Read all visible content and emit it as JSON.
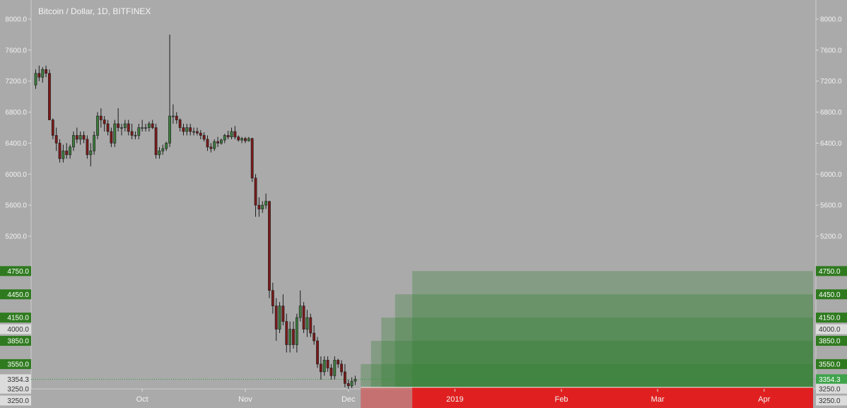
{
  "title": "Bitcoin / Dollar, 1D, BITFINEX",
  "chart_data": {
    "type": "candlestick",
    "title": "Bitcoin / Dollar, 1D, BITFINEX",
    "y_axis_ticks": [
      "8000.0",
      "7600.0",
      "7200.0",
      "6800.0",
      "6400.0",
      "6000.0",
      "5600.0",
      "5200.0"
    ],
    "ylim": [
      3150,
      8150
    ],
    "x_axis_ticks": [
      {
        "label": "Oct",
        "index": 31
      },
      {
        "label": "Nov",
        "index": 61
      },
      {
        "label": "Dec",
        "index": 91
      },
      {
        "label": "2019",
        "index": 122
      },
      {
        "label": "Feb",
        "index": 153
      },
      {
        "label": "Mar",
        "index": 181
      },
      {
        "label": "Apr",
        "index": 212
      }
    ],
    "x_range": [
      -1,
      229
    ],
    "candles_ohlc": [
      [
        7150,
        7350,
        7100,
        7300
      ],
      [
        7300,
        7400,
        7200,
        7250
      ],
      [
        7250,
        7380,
        7180,
        7350
      ],
      [
        7350,
        7400,
        7250,
        7300
      ],
      [
        7300,
        7350,
        6700,
        6700
      ],
      [
        6700,
        6720,
        6450,
        6500
      ],
      [
        6500,
        6600,
        6300,
        6400
      ],
      [
        6400,
        6450,
        6150,
        6200
      ],
      [
        6200,
        6380,
        6150,
        6300
      ],
      [
        6300,
        6400,
        6200,
        6250
      ],
      [
        6250,
        6380,
        6200,
        6350
      ],
      [
        6350,
        6550,
        6300,
        6500
      ],
      [
        6500,
        6600,
        6400,
        6450
      ],
      [
        6450,
        6550,
        6380,
        6500
      ],
      [
        6500,
        6550,
        6400,
        6450
      ],
      [
        6450,
        6500,
        6200,
        6250
      ],
      [
        6250,
        6400,
        6100,
        6300
      ],
      [
        6300,
        6550,
        6250,
        6500
      ],
      [
        6500,
        6800,
        6450,
        6750
      ],
      [
        6750,
        6850,
        6600,
        6700
      ],
      [
        6700,
        6750,
        6550,
        6650
      ],
      [
        6650,
        6700,
        6500,
        6550
      ],
      [
        6550,
        6600,
        6350,
        6400
      ],
      [
        6400,
        6700,
        6350,
        6650
      ],
      [
        6650,
        6850,
        6550,
        6600
      ],
      [
        6600,
        6650,
        6500,
        6600
      ],
      [
        6600,
        6700,
        6550,
        6650
      ],
      [
        6650,
        6700,
        6500,
        6550
      ],
      [
        6550,
        6650,
        6450,
        6500
      ],
      [
        6500,
        6550,
        6450,
        6500
      ],
      [
        6500,
        6650,
        6450,
        6600
      ],
      [
        6600,
        6700,
        6550,
        6600
      ],
      [
        6600,
        6650,
        6550,
        6600
      ],
      [
        6600,
        6680,
        6550,
        6650
      ],
      [
        6650,
        6700,
        6580,
        6600
      ],
      [
        6600,
        6650,
        6200,
        6250
      ],
      [
        6250,
        6350,
        6200,
        6300
      ],
      [
        6300,
        6380,
        6250,
        6330
      ],
      [
        6330,
        6420,
        6300,
        6400
      ],
      [
        6400,
        7800,
        6350,
        6750
      ],
      [
        6750,
        6900,
        6650,
        6750
      ],
      [
        6750,
        6800,
        6650,
        6700
      ],
      [
        6700,
        6720,
        6550,
        6600
      ],
      [
        6600,
        6650,
        6500,
        6550
      ],
      [
        6550,
        6650,
        6500,
        6600
      ],
      [
        6600,
        6650,
        6500,
        6550
      ],
      [
        6550,
        6600,
        6500,
        6550
      ],
      [
        6550,
        6600,
        6500,
        6530
      ],
      [
        6530,
        6570,
        6450,
        6500
      ],
      [
        6500,
        6540,
        6420,
        6450
      ],
      [
        6450,
        6500,
        6300,
        6350
      ],
      [
        6350,
        6400,
        6280,
        6330
      ],
      [
        6330,
        6450,
        6300,
        6420
      ],
      [
        6420,
        6480,
        6350,
        6400
      ],
      [
        6400,
        6460,
        6380,
        6440
      ],
      [
        6440,
        6520,
        6400,
        6500
      ],
      [
        6500,
        6560,
        6450,
        6480
      ],
      [
        6480,
        6600,
        6450,
        6550
      ],
      [
        6550,
        6620,
        6450,
        6480
      ],
      [
        6480,
        6500,
        6420,
        6440
      ],
      [
        6440,
        6480,
        6400,
        6460
      ],
      [
        6460,
        6480,
        6400,
        6430
      ],
      [
        6430,
        6480,
        6420,
        6460
      ],
      [
        6460,
        6470,
        5900,
        5950
      ],
      [
        5950,
        6000,
        5450,
        5600
      ],
      [
        5600,
        5700,
        5450,
        5550
      ],
      [
        5550,
        5650,
        5500,
        5600
      ],
      [
        5600,
        5750,
        5550,
        5650
      ],
      [
        5650,
        5650,
        4400,
        4500
      ],
      [
        4500,
        4600,
        4200,
        4300
      ],
      [
        4300,
        4400,
        3850,
        4000
      ],
      [
        4000,
        4350,
        3950,
        4300
      ],
      [
        4300,
        4450,
        4050,
        4100
      ],
      [
        4100,
        4200,
        3700,
        3800
      ],
      [
        3800,
        4100,
        3700,
        4000
      ],
      [
        4000,
        4100,
        3750,
        3800
      ],
      [
        3800,
        4200,
        3700,
        4150
      ],
      [
        4150,
        4500,
        4100,
        4300
      ],
      [
        4300,
        4350,
        3950,
        4000
      ],
      [
        4000,
        4250,
        3900,
        4150
      ],
      [
        4150,
        4200,
        3900,
        3950
      ],
      [
        3950,
        4050,
        3800,
        3850
      ],
      [
        3850,
        3900,
        3500,
        3550
      ],
      [
        3550,
        3650,
        3350,
        3450
      ],
      [
        3450,
        3650,
        3400,
        3600
      ],
      [
        3600,
        3650,
        3450,
        3500
      ],
      [
        3500,
        3550,
        3350,
        3400
      ],
      [
        3400,
        3650,
        3350,
        3600
      ],
      [
        3600,
        3620,
        3500,
        3550
      ],
      [
        3550,
        3600,
        3400,
        3450
      ],
      [
        3450,
        3550,
        3250,
        3300
      ],
      [
        3300,
        3350,
        3220,
        3270
      ],
      [
        3270,
        3380,
        3240,
        3330
      ],
      [
        3330,
        3400,
        3280,
        3354.3
      ]
    ],
    "colors": {
      "up": "#3c7a3c",
      "down": "#7a1a1a",
      "background": "#aaaaaa",
      "target_zone": "#2e7d2e",
      "stop_zone": "#e02020"
    },
    "current_price": {
      "label": "3354.3",
      "value": 3354.3
    },
    "target_levels": [
      {
        "label": "3550.0",
        "value": 3550,
        "start_index": 95
      },
      {
        "label": "3850.0",
        "value": 3850,
        "start_index": 98
      },
      {
        "label": "4150.0",
        "value": 4150,
        "start_index": 101
      },
      {
        "label": "4450.0",
        "value": 4450,
        "start_index": 105
      },
      {
        "label": "4750.0",
        "value": 4750,
        "start_index": 110
      }
    ],
    "stop_zone": {
      "top": 3250,
      "bottom": 2950,
      "start_index": 95
    },
    "right_badges": [
      {
        "label": "4750.0",
        "value": 4750,
        "style": "green"
      },
      {
        "label": "4450.0",
        "value": 4450,
        "style": "green"
      },
      {
        "label": "4150.0",
        "value": 4150,
        "style": "green"
      },
      {
        "label": "4000.0",
        "value": 4000,
        "style": "light"
      },
      {
        "label": "3850.0",
        "value": 3850,
        "style": "green"
      },
      {
        "label": "3550.0",
        "value": 3550,
        "style": "green"
      },
      {
        "label": "3354.3",
        "value": 3354.3,
        "style": "price"
      },
      {
        "label": "3250.0",
        "value": 3233,
        "style": "light"
      },
      {
        "label": "3250.0",
        "value": 3080,
        "style": "light"
      },
      {
        "label": "3250.0",
        "value": 2910,
        "style": "light"
      }
    ],
    "left_badges": [
      {
        "label": "4750.0",
        "value": 4750,
        "style": "green"
      },
      {
        "label": "4450.0",
        "value": 4450,
        "style": "green"
      },
      {
        "label": "4150.0",
        "value": 4150,
        "style": "green"
      },
      {
        "label": "4000.0",
        "value": 4000,
        "style": "light"
      },
      {
        "label": "3850.0",
        "value": 3850,
        "style": "green"
      },
      {
        "label": "3550.0",
        "value": 3550,
        "style": "green"
      },
      {
        "label": "3354.3",
        "value": 3354.3,
        "style": "light"
      },
      {
        "label": "3250.0",
        "value": 3233,
        "style": "light"
      },
      {
        "label": "3250.0",
        "value": 3080,
        "style": "light"
      },
      {
        "label": "3250.0",
        "value": 2910,
        "style": "light"
      }
    ]
  }
}
